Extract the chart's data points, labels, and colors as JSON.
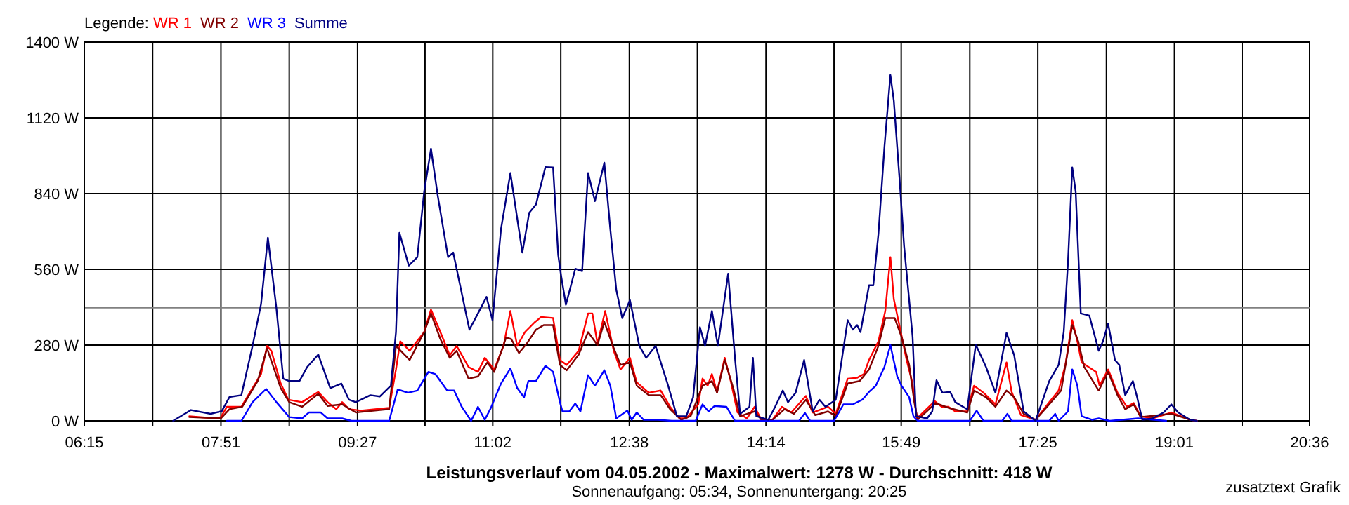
{
  "chart_data": {
    "type": "line",
    "title": "Leistungsverlauf vom 04.05.2002 - Maximalwert: 1278 W - Durchschnitt: 418 W",
    "subtitle": "Sonnenaufgang: 05:34, Sonnenuntergang: 20:25",
    "legend_title": "Legende:",
    "legend": "top left",
    "grid": true,
    "marker": "none",
    "line_style": "solid",
    "annotations": [
      "zusatztext Grafik"
    ],
    "xlim": [
      6.25,
      20.6
    ],
    "xticks": [
      {
        "value": 6.25,
        "label": "06:15"
      },
      {
        "value": 7.05,
        "label": null
      },
      {
        "value": 7.85,
        "label": "07:51"
      },
      {
        "value": 8.65,
        "label": null
      },
      {
        "value": 9.45,
        "label": "09:27"
      },
      {
        "value": 10.24,
        "label": null
      },
      {
        "value": 11.0333,
        "label": "11:02"
      },
      {
        "value": 11.83,
        "label": null
      },
      {
        "value": 12.6333,
        "label": "12:38"
      },
      {
        "value": 13.43,
        "label": null
      },
      {
        "value": 14.2333,
        "label": "14:14"
      },
      {
        "value": 15.03,
        "label": null
      },
      {
        "value": 15.8167,
        "label": "15:49"
      },
      {
        "value": 16.62,
        "label": null
      },
      {
        "value": 17.4167,
        "label": "17:25"
      },
      {
        "value": 18.22,
        "label": null
      },
      {
        "value": 19.0167,
        "label": "19:01"
      },
      {
        "value": 19.81,
        "label": null
      },
      {
        "value": 20.6,
        "label": "20:36"
      }
    ],
    "ylim": [
      0,
      1400
    ],
    "yticks": [
      {
        "value": 0,
        "label": "0 W"
      },
      {
        "value": 280,
        "label": "280 W"
      },
      {
        "value": 560,
        "label": "560 W"
      },
      {
        "value": 840,
        "label": "840 W"
      },
      {
        "value": 1120,
        "label": "1120 W"
      },
      {
        "value": 1400,
        "label": "1400 W"
      }
    ],
    "ref_lines": [
      {
        "axis": "y",
        "value": 418,
        "color": "#808080"
      }
    ],
    "series": [
      {
        "name": "WR 1",
        "color": "#ff0000",
        "x": [
          7.48,
          7.79,
          7.85,
          7.92,
          8.09,
          8.22,
          8.32,
          8.39,
          8.44,
          8.55,
          8.64,
          8.8,
          8.99,
          9.1,
          9.2,
          9.27,
          9.35,
          9.49,
          9.82,
          9.9,
          9.95,
          10.06,
          10.23,
          10.31,
          10.42,
          10.53,
          10.61,
          10.75,
          10.86,
          10.94,
          11.05,
          11.16,
          11.24,
          11.32,
          11.41,
          11.52,
          11.6,
          11.74,
          11.82,
          11.9,
          12.04,
          12.15,
          12.2,
          12.26,
          12.35,
          12.45,
          12.53,
          12.64,
          12.72,
          12.86,
          13.0,
          13.11,
          13.22,
          13.3,
          13.44,
          13.49,
          13.55,
          13.6,
          13.66,
          13.75,
          13.82,
          13.9,
          14.01,
          14.1,
          14.18,
          14.31,
          14.42,
          14.53,
          14.7,
          14.78,
          14.96,
          15.05,
          15.19,
          15.3,
          15.38,
          15.44,
          15.55,
          15.63,
          15.69,
          15.73,
          15.8,
          15.88,
          15.95,
          16.0,
          16.21,
          16.29,
          16.37,
          16.45,
          16.59,
          16.67,
          16.78,
          16.92,
          17.05,
          17.11,
          17.22,
          17.39,
          17.55,
          17.66,
          17.74,
          17.82,
          17.88,
          17.93,
          18.1,
          18.14,
          18.24,
          18.35,
          18.46,
          18.54,
          18.62,
          18.76,
          18.98,
          19.2,
          19.28
        ],
        "values": [
          17,
          9,
          14,
          52,
          52,
          121,
          173,
          277,
          259,
          138,
          78,
          69,
          107,
          69,
          43,
          69,
          43,
          38,
          48,
          190,
          294,
          259,
          328,
          411,
          328,
          242,
          277,
          199,
          181,
          233,
          190,
          277,
          406,
          277,
          328,
          363,
          384,
          380,
          225,
          207,
          259,
          397,
          397,
          285,
          406,
          259,
          190,
          233,
          142,
          104,
          112,
          52,
          9,
          9,
          61,
          156,
          130,
          173,
          107,
          233,
          147,
          31,
          9,
          52,
          4,
          4,
          52,
          31,
          92,
          31,
          52,
          26,
          156,
          159,
          173,
          225,
          294,
          406,
          605,
          450,
          346,
          225,
          138,
          9,
          73,
          52,
          52,
          35,
          35,
          130,
          104,
          61,
          216,
          107,
          21,
          4,
          69,
          112,
          207,
          372,
          294,
          216,
          181,
          130,
          190,
          104,
          52,
          66,
          17,
          9,
          31,
          4,
          0
        ]
      },
      {
        "name": "WR 2",
        "color": "#800000",
        "x": [
          7.48,
          7.85,
          7.95,
          8.1,
          8.28,
          8.39,
          8.55,
          8.65,
          8.8,
          8.99,
          9.1,
          9.27,
          9.43,
          9.82,
          9.9,
          10.06,
          10.23,
          10.31,
          10.42,
          10.53,
          10.61,
          10.75,
          10.86,
          10.97,
          11.05,
          11.19,
          11.25,
          11.34,
          11.43,
          11.54,
          11.63,
          11.74,
          11.82,
          11.9,
          12.04,
          12.15,
          12.26,
          12.34,
          12.44,
          12.53,
          12.64,
          12.72,
          12.86,
          13.0,
          13.11,
          13.24,
          13.35,
          13.49,
          13.6,
          13.66,
          13.75,
          13.85,
          13.93,
          14.1,
          14.18,
          14.31,
          14.45,
          14.56,
          14.7,
          14.81,
          14.96,
          15.05,
          15.19,
          15.33,
          15.44,
          15.55,
          15.63,
          15.74,
          15.82,
          15.91,
          15.97,
          16.01,
          16.22,
          16.37,
          16.59,
          16.67,
          16.81,
          16.92,
          17.05,
          17.14,
          17.25,
          17.39,
          17.55,
          17.69,
          17.82,
          17.89,
          17.96,
          18.13,
          18.24,
          18.35,
          18.44,
          18.54,
          18.62,
          18.98,
          19.2
        ],
        "values": [
          14,
          9,
          43,
          52,
          147,
          268,
          121,
          69,
          52,
          100,
          55,
          61,
          31,
          43,
          277,
          225,
          328,
          397,
          302,
          233,
          259,
          156,
          164,
          216,
          181,
          308,
          302,
          251,
          285,
          337,
          354,
          354,
          207,
          187,
          245,
          328,
          280,
          366,
          277,
          207,
          216,
          130,
          95,
          95,
          43,
          4,
          17,
          130,
          147,
          104,
          225,
          121,
          17,
          35,
          4,
          4,
          43,
          26,
          78,
          21,
          35,
          17,
          138,
          147,
          190,
          277,
          380,
          380,
          311,
          207,
          69,
          4,
          66,
          48,
          31,
          112,
          87,
          52,
          112,
          87,
          26,
          4,
          61,
          112,
          354,
          294,
          199,
          112,
          181,
          95,
          43,
          61,
          14,
          26,
          4
        ]
      },
      {
        "name": "WR 3",
        "color": "#0000ff",
        "x": [
          7.92,
          8.09,
          8.22,
          8.38,
          8.5,
          8.65,
          8.8,
          8.88,
          9.02,
          9.1,
          9.27,
          9.38,
          9.82,
          9.92,
          10.04,
          10.15,
          10.28,
          10.36,
          10.5,
          10.58,
          10.67,
          10.78,
          10.86,
          10.94,
          11.01,
          11.13,
          11.24,
          11.32,
          11.4,
          11.45,
          11.54,
          11.65,
          11.74,
          11.82,
          11.85,
          11.93,
          12.0,
          12.06,
          12.15,
          12.23,
          12.34,
          12.41,
          12.48,
          12.61,
          12.66,
          12.72,
          12.8,
          12.97,
          13.13,
          13.41,
          13.49,
          13.56,
          13.63,
          13.77,
          13.87,
          14.62,
          14.69,
          14.75,
          15.03,
          15.14,
          15.25,
          15.36,
          15.44,
          15.52,
          15.62,
          15.69,
          15.77,
          15.82,
          15.91,
          15.96,
          16.01,
          16.62,
          16.7,
          16.78,
          17.0,
          17.06,
          17.11,
          17.55,
          17.62,
          17.66,
          17.77,
          17.82,
          17.88,
          17.93,
          18.05,
          18.13,
          18.26,
          18.59,
          18.92
        ],
        "values": [
          0,
          0,
          69,
          118,
          69,
          14,
          9,
          31,
          31,
          9,
          9,
          0,
          0,
          116,
          104,
          112,
          181,
          173,
          112,
          112,
          52,
          0,
          52,
          4,
          47,
          138,
          194,
          121,
          87,
          147,
          147,
          204,
          181,
          69,
          35,
          35,
          64,
          35,
          169,
          130,
          187,
          130,
          9,
          38,
          4,
          31,
          4,
          4,
          0,
          0,
          61,
          35,
          55,
          52,
          0,
          0,
          29,
          0,
          0,
          61,
          61,
          78,
          107,
          130,
          199,
          280,
          164,
          130,
          87,
          17,
          0,
          0,
          38,
          0,
          0,
          26,
          0,
          0,
          26,
          0,
          35,
          190,
          130,
          17,
          4,
          9,
          0,
          9,
          0
        ]
      },
      {
        "name": "Summe",
        "color": "#000080",
        "x": [
          7.29,
          7.5,
          7.73,
          7.86,
          7.95,
          8.09,
          8.22,
          8.32,
          8.4,
          8.5,
          8.58,
          8.65,
          8.77,
          8.86,
          8.99,
          9.13,
          9.26,
          9.35,
          9.43,
          9.6,
          9.71,
          9.84,
          9.9,
          9.94,
          10.05,
          10.15,
          10.23,
          10.31,
          10.39,
          10.51,
          10.57,
          10.76,
          10.86,
          10.96,
          11.03,
          11.13,
          11.24,
          11.38,
          11.46,
          11.54,
          11.65,
          11.74,
          11.8,
          11.83,
          11.89,
          12.0,
          12.08,
          12.15,
          12.23,
          12.34,
          12.41,
          12.48,
          12.55,
          12.64,
          12.75,
          12.83,
          12.94,
          13.08,
          13.19,
          13.3,
          13.38,
          13.46,
          13.52,
          13.6,
          13.67,
          13.79,
          13.87,
          13.93,
          14.04,
          14.08,
          14.12,
          14.26,
          14.34,
          14.43,
          14.49,
          14.58,
          14.68,
          14.78,
          14.86,
          14.93,
          15.05,
          15.19,
          15.25,
          15.3,
          15.34,
          15.44,
          15.49,
          15.55,
          15.62,
          15.69,
          15.73,
          15.8,
          15.85,
          15.95,
          15.99,
          16.12,
          16.18,
          16.23,
          16.3,
          16.39,
          16.45,
          16.59,
          16.69,
          16.81,
          16.92,
          17.05,
          17.14,
          17.25,
          17.39,
          17.55,
          17.66,
          17.72,
          17.77,
          17.82,
          17.86,
          17.92,
          18.02,
          18.13,
          18.18,
          18.24,
          18.32,
          18.37,
          18.44,
          18.53,
          18.58,
          18.64,
          18.76,
          18.89,
          18.98,
          19.06,
          19.2,
          19.28
        ],
        "values": [
          0,
          40,
          26,
          36,
          88,
          95,
          277,
          432,
          677,
          415,
          156,
          147,
          147,
          199,
          245,
          121,
          138,
          78,
          69,
          95,
          90,
          130,
          328,
          695,
          574,
          605,
          847,
          1006,
          830,
          605,
          622,
          337,
          397,
          458,
          372,
          709,
          916,
          622,
          769,
          800,
          938,
          937,
          613,
          544,
          429,
          562,
          553,
          916,
          812,
          954,
          709,
          484,
          380,
          446,
          277,
          233,
          277,
          138,
          17,
          17,
          87,
          346,
          277,
          406,
          277,
          544,
          233,
          26,
          52,
          233,
          17,
          4,
          52,
          112,
          69,
          104,
          225,
          35,
          78,
          52,
          78,
          372,
          337,
          354,
          328,
          501,
          501,
          691,
          1011,
          1278,
          1184,
          881,
          648,
          311,
          17,
          9,
          35,
          150,
          104,
          107,
          69,
          43,
          282,
          199,
          104,
          325,
          242,
          35,
          0,
          147,
          207,
          328,
          587,
          937,
          847,
          397,
          389,
          259,
          294,
          359,
          225,
          207,
          95,
          147,
          87,
          4,
          9,
          31,
          61,
          31,
          4,
          0
        ]
      }
    ]
  }
}
